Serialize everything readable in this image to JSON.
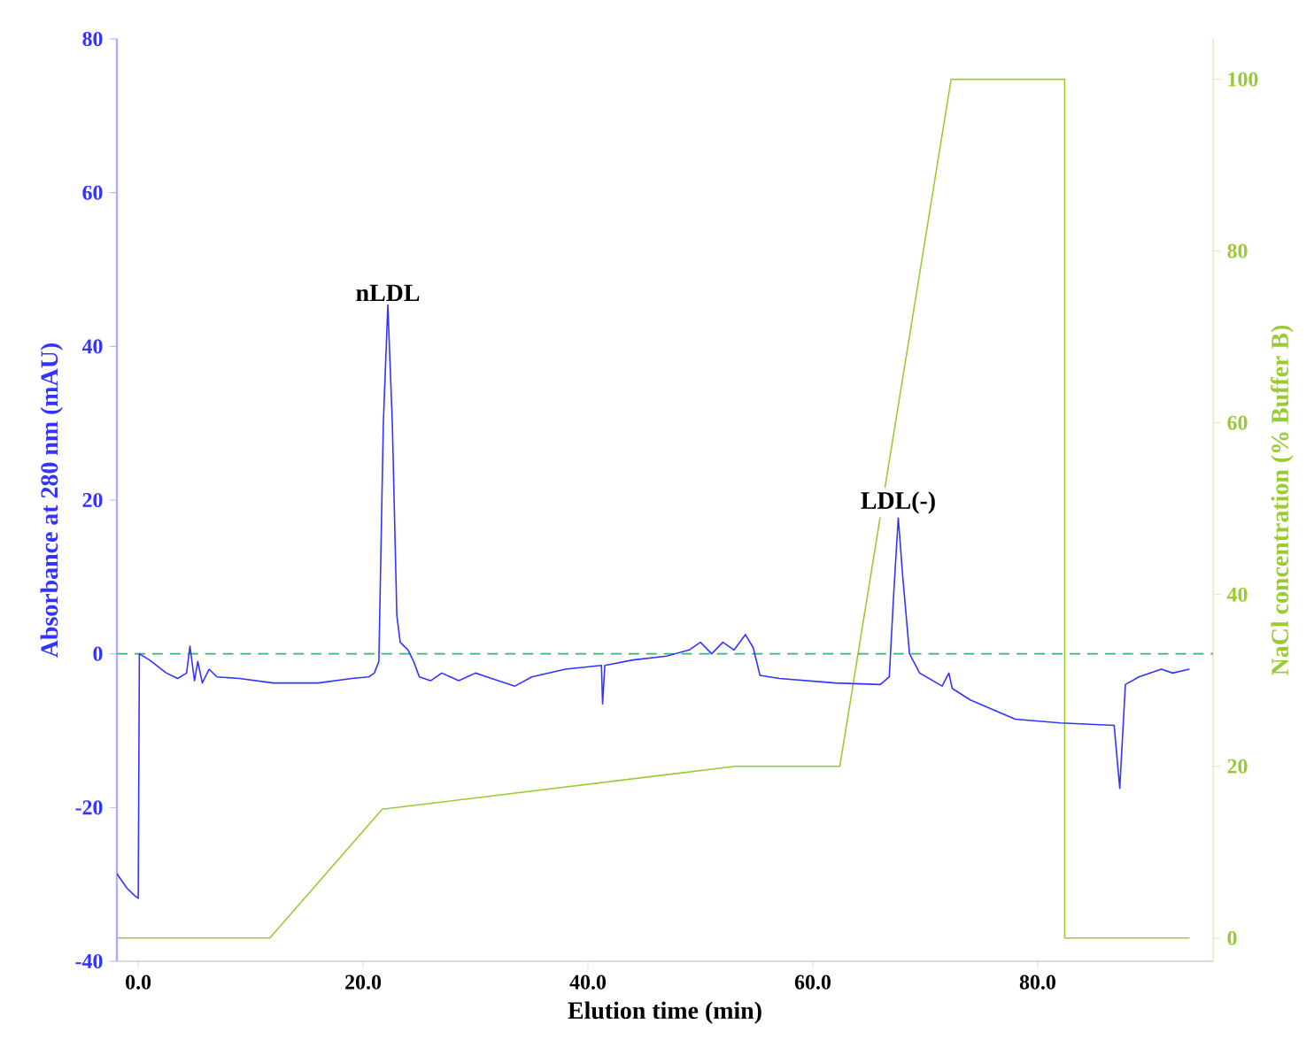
{
  "chart_data": {
    "type": "line",
    "xlabel": "Elution time (min)",
    "ylabel": "Absorbance at 280 nm (mAU)",
    "y2label": "NaCl concentration (% Buffer B)",
    "xlim": [
      -1.9,
      95.6
    ],
    "xticks": [
      {
        "value": 0,
        "label": "0.0"
      },
      {
        "value": 20,
        "label": "20.0"
      },
      {
        "value": 40,
        "label": "40.0"
      },
      {
        "value": 60,
        "label": "60.0"
      },
      {
        "value": 80,
        "label": "80.0"
      }
    ],
    "ylim": [
      -40,
      80
    ],
    "yticks": [
      -40,
      -20,
      0,
      20,
      40,
      60,
      80
    ],
    "y2lim": [
      -2.7,
      104.7
    ],
    "y2ticks": [
      0,
      20,
      40,
      60,
      80,
      100
    ],
    "series": [
      {
        "color": "#3333ff",
        "x": [
          -1.9,
          -1.0,
          -0.3,
          0.0,
          0.1,
          1.0,
          2.5,
          3.5,
          4.3,
          4.6,
          5.0,
          5.3,
          5.7,
          6.3,
          7.0,
          9.0,
          12,
          16,
          19,
          20.5,
          21.0,
          21.4,
          21.8,
          22.2,
          22.6,
          23.0,
          23.3,
          24,
          24.5,
          25,
          26,
          27,
          28.5,
          30,
          31,
          33.5,
          35,
          38,
          41.2,
          41.3,
          41.5,
          44,
          47,
          49,
          50,
          51,
          52,
          53,
          54,
          54.7,
          55.3,
          57,
          62,
          66,
          66.8,
          67.2,
          67.6,
          68,
          68.6,
          69.5,
          71.5,
          72.1,
          72.4,
          74,
          78,
          82,
          86.8,
          87.3,
          87.8,
          89,
          91,
          92,
          93.5
        ],
        "values": [
          -28.6,
          -30.5,
          -31.5,
          -31.8,
          0,
          -0.8,
          -2.5,
          -3.2,
          -2.5,
          1.0,
          -3.5,
          -1.0,
          -3.8,
          -2.0,
          -3.0,
          -3.2,
          -3.8,
          -3.8,
          -3.2,
          -3.0,
          -2.5,
          -1,
          30,
          45.4,
          30,
          5,
          1.5,
          0.5,
          -1,
          -3,
          -3.5,
          -2.5,
          -3.5,
          -2.5,
          -3,
          -4.2,
          -3,
          -2,
          -1.5,
          -6.5,
          -1.5,
          -0.8,
          -0.3,
          0.5,
          1.5,
          0,
          1.5,
          0.5,
          2.5,
          0.8,
          -2.8,
          -3.2,
          -3.8,
          -4.0,
          -3,
          8,
          17.7,
          10,
          0,
          -2.5,
          -4.2,
          -2.5,
          -4.5,
          -6,
          -8.5,
          -9,
          -9.3,
          -17.5,
          -4,
          -3,
          -2,
          -2.5,
          -2
        ]
      },
      {
        "color": "#99cc33",
        "axis": "y2",
        "x": [
          -1.9,
          11.7,
          21.7,
          53.1,
          62.4,
          72.3,
          82.4,
          82.4,
          93.5
        ],
        "values": [
          0,
          0,
          15,
          20,
          20,
          100,
          100,
          0,
          0
        ]
      }
    ],
    "ref_lines": [
      {
        "axis": "y",
        "value": 0,
        "color": "#3cb371",
        "line_style": "dashed"
      }
    ],
    "annotations": [
      {
        "text": "nLDL",
        "x": 22.2,
        "y": 45.4
      },
      {
        "text": "LDL(-)",
        "x": 67.6,
        "y": 17.7
      }
    ]
  }
}
